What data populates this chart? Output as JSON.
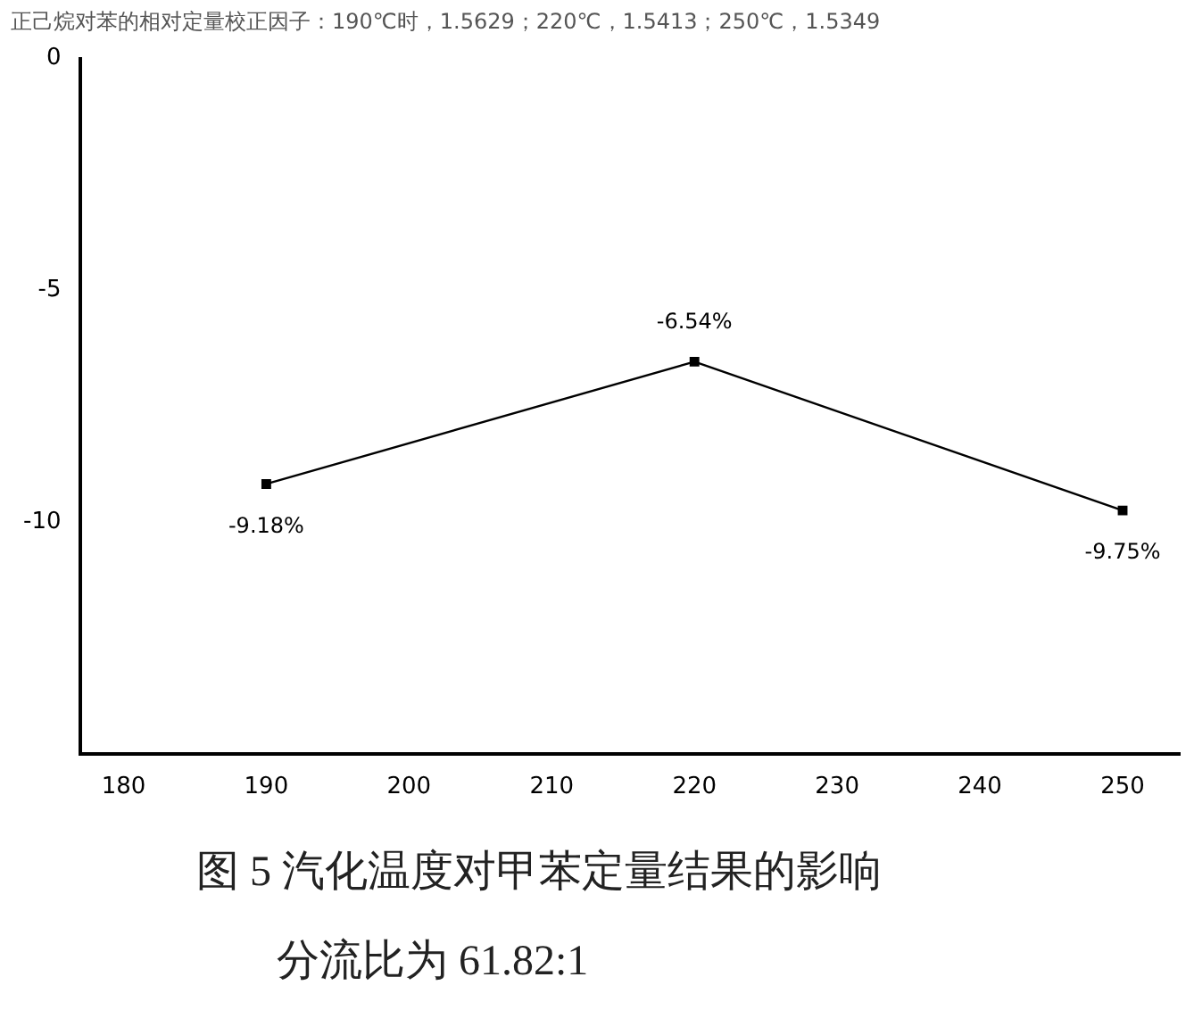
{
  "chart_data": {
    "type": "line",
    "x": [
      190,
      220,
      250
    ],
    "series": [
      {
        "color": "#000000",
        "values": [
          -9.18,
          -6.54,
          -9.75
        ],
        "value_labels": [
          "-9.18%",
          "-6.54%",
          "-9.75%"
        ]
      }
    ],
    "xlim": [
      177,
      254
    ],
    "xticks": [
      180,
      190,
      200,
      210,
      220,
      230,
      240,
      250
    ],
    "ylim": [
      -15,
      0
    ],
    "yticks": [
      0,
      -5,
      -10
    ],
    "marker": "square",
    "line_style": "solid",
    "grid": false,
    "legend": false,
    "annotations": [
      "正己烷对苯的相对定量校正因子：190℃时，1.5629；220℃，1.5413；250℃，1.5349",
      "图 5 汽化温度对甲苯定量结果的影响",
      "分流比为 61.82:1"
    ]
  }
}
